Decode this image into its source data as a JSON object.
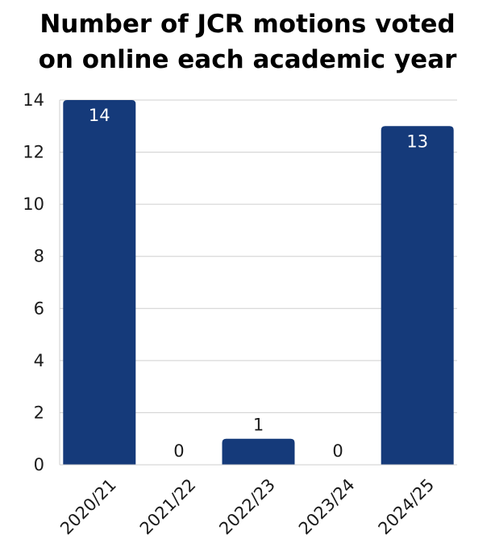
{
  "chart_data": {
    "type": "bar",
    "title_lines": [
      "Number of JCR motions voted",
      "on online each academic year"
    ],
    "xlabel": "",
    "ylabel": "",
    "categories": [
      "2020/21",
      "2021/22",
      "2022/23",
      "2023/24",
      "2024/25"
    ],
    "values": [
      14,
      0,
      1,
      0,
      13
    ],
    "data_labels": [
      "14",
      "0",
      "1",
      "0",
      "13"
    ],
    "y_ticks": [
      "0",
      "2",
      "4",
      "6",
      "8",
      "10",
      "12",
      "14"
    ],
    "ylim": [
      0,
      14
    ],
    "grid": true,
    "legend": "none",
    "colors": {
      "bar": "#153a7a",
      "label_inside": "#ffffff",
      "label_outside": "#1a1a1a",
      "grid": "#cfcfcf"
    }
  }
}
